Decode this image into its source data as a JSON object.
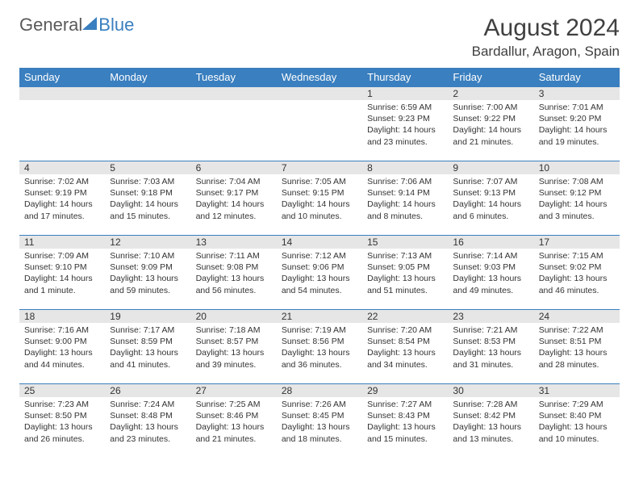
{
  "logo": {
    "part1": "General",
    "part2": "Blue"
  },
  "title": "August 2024",
  "location": "Bardallur, Aragon, Spain",
  "colors": {
    "header_bar": "#3a7fbf",
    "daynum_bg": "#e6e6e6",
    "text": "#333333",
    "title_text": "#404040",
    "background": "#ffffff"
  },
  "fonts": {
    "title_size_pt": 30,
    "location_size_pt": 17,
    "weekday_size_pt": 13,
    "daynum_size_pt": 12,
    "body_size_pt": 10.5
  },
  "weekdays": [
    "Sunday",
    "Monday",
    "Tuesday",
    "Wednesday",
    "Thursday",
    "Friday",
    "Saturday"
  ],
  "weeks": [
    [
      null,
      null,
      null,
      null,
      {
        "n": "1",
        "sunrise": "6:59 AM",
        "sunset": "9:23 PM",
        "daylight": "14 hours and 23 minutes."
      },
      {
        "n": "2",
        "sunrise": "7:00 AM",
        "sunset": "9:22 PM",
        "daylight": "14 hours and 21 minutes."
      },
      {
        "n": "3",
        "sunrise": "7:01 AM",
        "sunset": "9:20 PM",
        "daylight": "14 hours and 19 minutes."
      }
    ],
    [
      {
        "n": "4",
        "sunrise": "7:02 AM",
        "sunset": "9:19 PM",
        "daylight": "14 hours and 17 minutes."
      },
      {
        "n": "5",
        "sunrise": "7:03 AM",
        "sunset": "9:18 PM",
        "daylight": "14 hours and 15 minutes."
      },
      {
        "n": "6",
        "sunrise": "7:04 AM",
        "sunset": "9:17 PM",
        "daylight": "14 hours and 12 minutes."
      },
      {
        "n": "7",
        "sunrise": "7:05 AM",
        "sunset": "9:15 PM",
        "daylight": "14 hours and 10 minutes."
      },
      {
        "n": "8",
        "sunrise": "7:06 AM",
        "sunset": "9:14 PM",
        "daylight": "14 hours and 8 minutes."
      },
      {
        "n": "9",
        "sunrise": "7:07 AM",
        "sunset": "9:13 PM",
        "daylight": "14 hours and 6 minutes."
      },
      {
        "n": "10",
        "sunrise": "7:08 AM",
        "sunset": "9:12 PM",
        "daylight": "14 hours and 3 minutes."
      }
    ],
    [
      {
        "n": "11",
        "sunrise": "7:09 AM",
        "sunset": "9:10 PM",
        "daylight": "14 hours and 1 minute."
      },
      {
        "n": "12",
        "sunrise": "7:10 AM",
        "sunset": "9:09 PM",
        "daylight": "13 hours and 59 minutes."
      },
      {
        "n": "13",
        "sunrise": "7:11 AM",
        "sunset": "9:08 PM",
        "daylight": "13 hours and 56 minutes."
      },
      {
        "n": "14",
        "sunrise": "7:12 AM",
        "sunset": "9:06 PM",
        "daylight": "13 hours and 54 minutes."
      },
      {
        "n": "15",
        "sunrise": "7:13 AM",
        "sunset": "9:05 PM",
        "daylight": "13 hours and 51 minutes."
      },
      {
        "n": "16",
        "sunrise": "7:14 AM",
        "sunset": "9:03 PM",
        "daylight": "13 hours and 49 minutes."
      },
      {
        "n": "17",
        "sunrise": "7:15 AM",
        "sunset": "9:02 PM",
        "daylight": "13 hours and 46 minutes."
      }
    ],
    [
      {
        "n": "18",
        "sunrise": "7:16 AM",
        "sunset": "9:00 PM",
        "daylight": "13 hours and 44 minutes."
      },
      {
        "n": "19",
        "sunrise": "7:17 AM",
        "sunset": "8:59 PM",
        "daylight": "13 hours and 41 minutes."
      },
      {
        "n": "20",
        "sunrise": "7:18 AM",
        "sunset": "8:57 PM",
        "daylight": "13 hours and 39 minutes."
      },
      {
        "n": "21",
        "sunrise": "7:19 AM",
        "sunset": "8:56 PM",
        "daylight": "13 hours and 36 minutes."
      },
      {
        "n": "22",
        "sunrise": "7:20 AM",
        "sunset": "8:54 PM",
        "daylight": "13 hours and 34 minutes."
      },
      {
        "n": "23",
        "sunrise": "7:21 AM",
        "sunset": "8:53 PM",
        "daylight": "13 hours and 31 minutes."
      },
      {
        "n": "24",
        "sunrise": "7:22 AM",
        "sunset": "8:51 PM",
        "daylight": "13 hours and 28 minutes."
      }
    ],
    [
      {
        "n": "25",
        "sunrise": "7:23 AM",
        "sunset": "8:50 PM",
        "daylight": "13 hours and 26 minutes."
      },
      {
        "n": "26",
        "sunrise": "7:24 AM",
        "sunset": "8:48 PM",
        "daylight": "13 hours and 23 minutes."
      },
      {
        "n": "27",
        "sunrise": "7:25 AM",
        "sunset": "8:46 PM",
        "daylight": "13 hours and 21 minutes."
      },
      {
        "n": "28",
        "sunrise": "7:26 AM",
        "sunset": "8:45 PM",
        "daylight": "13 hours and 18 minutes."
      },
      {
        "n": "29",
        "sunrise": "7:27 AM",
        "sunset": "8:43 PM",
        "daylight": "13 hours and 15 minutes."
      },
      {
        "n": "30",
        "sunrise": "7:28 AM",
        "sunset": "8:42 PM",
        "daylight": "13 hours and 13 minutes."
      },
      {
        "n": "31",
        "sunrise": "7:29 AM",
        "sunset": "8:40 PM",
        "daylight": "13 hours and 10 minutes."
      }
    ]
  ],
  "labels": {
    "sunrise": "Sunrise: ",
    "sunset": "Sunset: ",
    "daylight": "Daylight: "
  }
}
